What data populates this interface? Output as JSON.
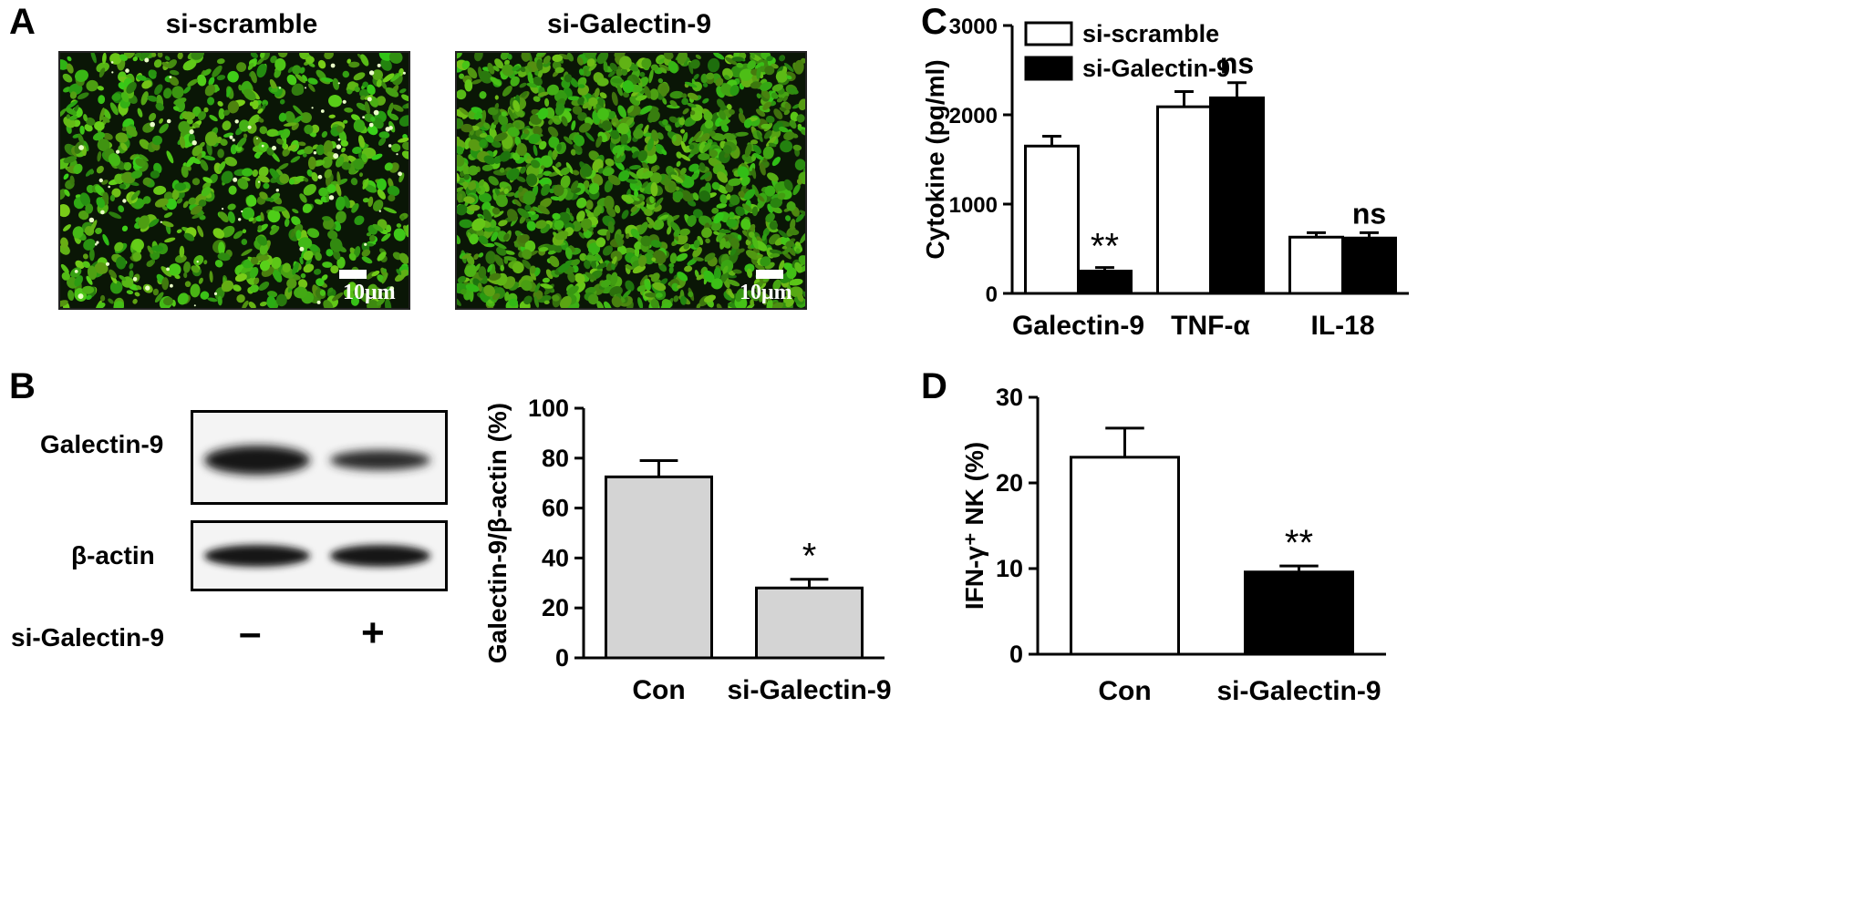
{
  "panel_labels": {
    "a": "A",
    "b": "B",
    "c": "C",
    "d": "D"
  },
  "panel_a": {
    "left_title": "si-scramble",
    "right_title": "si-Galectin-9",
    "scale_label": "10μm"
  },
  "panel_b_blot": {
    "row1_label": "Galectin-9",
    "row2_label": "β-actin",
    "treatment_label": "si-Galectin-9",
    "minus_sign": "–",
    "plus_sign": "+"
  },
  "colors": {
    "white_bar": "#ffffff",
    "black_bar": "#000000",
    "gray_bar": "#d4d4d4",
    "fluorescence_green": "#4fc41e"
  },
  "chart_data": [
    {
      "id": "B",
      "type": "bar",
      "categories": [
        "Con",
        "si-Galectin-9"
      ],
      "values": [
        72.5,
        28
      ],
      "errors": [
        6.5,
        3.5
      ],
      "annotations": [
        "",
        "*"
      ],
      "ylabel": "Galectin-9/β-actin (%)",
      "ylim": [
        0,
        100
      ],
      "yticks": [
        0,
        20,
        40,
        60,
        80,
        100
      ],
      "colors": [
        "#d4d4d4",
        "#d4d4d4"
      ]
    },
    {
      "id": "C",
      "type": "bar",
      "categories": [
        "Galectin-9",
        "TNF-α",
        "IL-18"
      ],
      "series": [
        {
          "name": "si-scramble",
          "values": [
            1650,
            2090,
            630
          ],
          "errors": [
            110,
            170,
            50
          ],
          "color": "#ffffff"
        },
        {
          "name": "si-Galectin-9",
          "values": [
            250,
            2190,
            620
          ],
          "errors": [
            40,
            170,
            60
          ],
          "color": "#000000"
        }
      ],
      "annotations": [
        {
          "category": "Galectin-9",
          "series": "si-Galectin-9",
          "text": "**"
        },
        {
          "category": "TNF-α",
          "series": "si-Galectin-9",
          "text": "ns"
        },
        {
          "category": "IL-18",
          "series": "si-Galectin-9",
          "text": "ns"
        }
      ],
      "ylabel": "Cytokine (pg/ml)",
      "ylim": [
        0,
        3000
      ],
      "yticks": [
        0,
        1000,
        2000,
        3000
      ],
      "legend": "top-left"
    },
    {
      "id": "D",
      "type": "bar",
      "categories": [
        "Con",
        "si-Galectin-9"
      ],
      "values": [
        23,
        9.6
      ],
      "errors": [
        3.4,
        0.7
      ],
      "annotations": [
        "",
        "**"
      ],
      "ylabel": "IFN-γ⁺ NK (%)",
      "ylim": [
        0,
        30
      ],
      "yticks": [
        0,
        10,
        20,
        30
      ],
      "colors": [
        "#ffffff",
        "#000000"
      ]
    }
  ]
}
